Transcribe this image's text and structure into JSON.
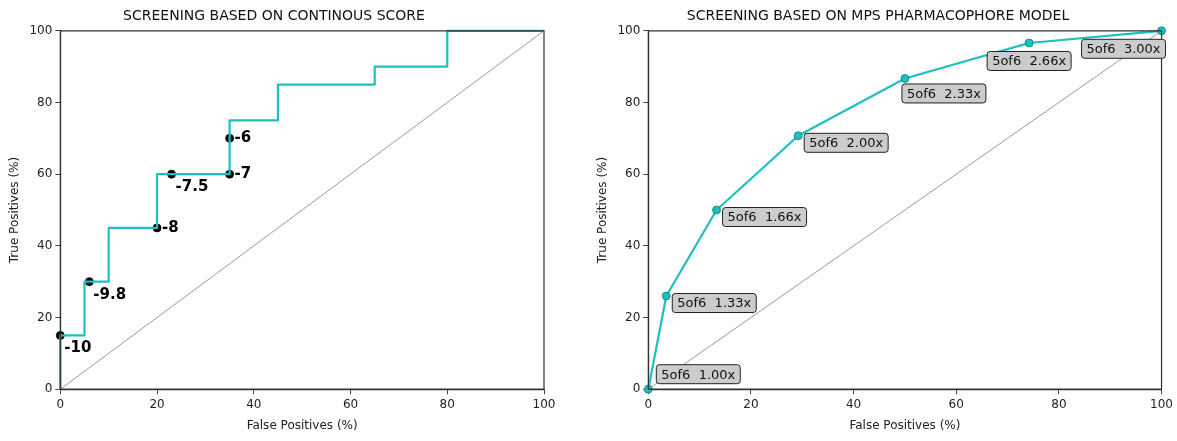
{
  "chart_data": [
    {
      "type": "line",
      "title": "SCREENING BASED ON CONTINOUS SCORE",
      "xlabel": "False Positives (%)",
      "ylabel": "True Positives (%)",
      "xlim": [
        0,
        100
      ],
      "ylim": [
        0,
        100
      ],
      "xticks": [
        0,
        20,
        40,
        60,
        80,
        100
      ],
      "yticks": [
        0,
        20,
        40,
        60,
        80,
        100
      ],
      "grid": false,
      "legend": false,
      "series": [
        {
          "color": "#808080",
          "x": [
            0,
            100
          ],
          "values": [
            0,
            100
          ],
          "marker": "none"
        },
        {
          "color": "#1fbfbf",
          "x": [
            0,
            0,
            5,
            5,
            10,
            10,
            20,
            20,
            35,
            35,
            45,
            45,
            65,
            65,
            80,
            80,
            100
          ],
          "values": [
            0,
            15,
            15,
            30,
            30,
            45,
            45,
            60,
            60,
            75,
            75,
            85,
            85,
            90,
            90,
            100,
            100
          ],
          "marker": "none"
        },
        {
          "type": "scatter",
          "color": "#000000",
          "x": [
            0,
            6,
            20,
            23,
            35,
            35
          ],
          "values": [
            15,
            30,
            45,
            60,
            60,
            70
          ],
          "marker": "circle"
        }
      ],
      "annotations": [
        {
          "text": "-10",
          "x": 0,
          "y": 15
        },
        {
          "text": "-9.8",
          "x": 6,
          "y": 30
        },
        {
          "text": "-8",
          "x": 20,
          "y": 45
        },
        {
          "text": "-7.5",
          "x": 23,
          "y": 60
        },
        {
          "text": "-7",
          "x": 35,
          "y": 60
        },
        {
          "text": "-6",
          "x": 35,
          "y": 70
        }
      ]
    },
    {
      "type": "line",
      "title": "SCREENING BASED ON MPS PHARMACOPHORE MODEL",
      "xlabel": "False Positives (%)",
      "ylabel": "True Positives (%)",
      "xlim": [
        0,
        100
      ],
      "ylim": [
        0,
        100
      ],
      "xticks": [
        0,
        20,
        40,
        60,
        80,
        100
      ],
      "yticks": [
        0,
        20,
        40,
        60,
        80,
        100
      ],
      "grid": false,
      "legend": false,
      "series": [
        {
          "color": "#808080",
          "x": [
            0,
            100
          ],
          "values": [
            0,
            100
          ],
          "marker": "none"
        },
        {
          "color": "#1fbfbf",
          "x": [
            0,
            3.5,
            13.3,
            29.2,
            50,
            74.2,
            100
          ],
          "values": [
            0,
            26,
            50,
            70.7,
            86.7,
            96.6,
            100
          ],
          "marker": "circle"
        }
      ],
      "annotations": [
        {
          "text": "5of6  1.00x",
          "x": 0,
          "y": 0
        },
        {
          "text": "5of6  1.33x",
          "x": 3.5,
          "y": 26
        },
        {
          "text": "5of6  1.66x",
          "x": 13.3,
          "y": 50
        },
        {
          "text": "5of6  2.00x",
          "x": 29.2,
          "y": 70.7
        },
        {
          "text": "5of6  2.33x",
          "x": 50,
          "y": 86.7
        },
        {
          "text": "5of6  2.66x",
          "x": 74.2,
          "y": 96.6
        },
        {
          "text": "5of6  3.00x",
          "x": 100,
          "y": 100
        }
      ]
    }
  ]
}
